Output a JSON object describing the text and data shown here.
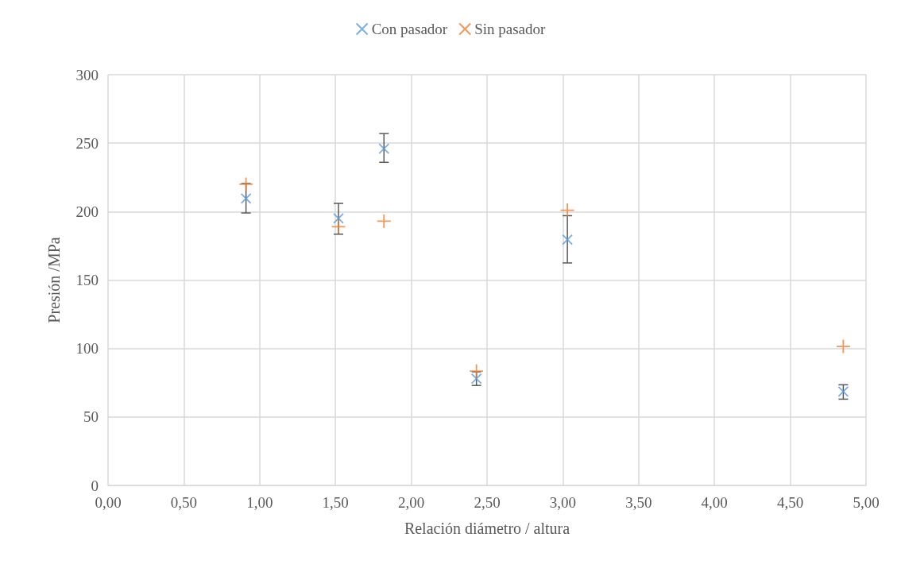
{
  "chart_data": {
    "type": "scatter",
    "xlabel": "Relación diámetro / altura",
    "ylabel": "Presión /MPa",
    "x": [
      0.91,
      1.52,
      1.82,
      2.43,
      3.03,
      4.85
    ],
    "series": [
      {
        "name": "Con pasador",
        "color": "#5b9bd5",
        "marker": "cross",
        "values": [
          209.5,
          195,
          246,
          78,
          179.5,
          68.5
        ],
        "errors": [
          [
            199,
            220.5
          ],
          [
            183.5,
            206
          ],
          [
            236,
            257
          ],
          [
            73,
            83
          ],
          [
            162.5,
            197
          ],
          [
            63,
            73.5
          ]
        ]
      },
      {
        "name": "Sin pasador",
        "color": "#ed7d31",
        "marker": "cross",
        "values": [
          220,
          189,
          193,
          83.5,
          201,
          101.5
        ]
      }
    ],
    "xlim": [
      0,
      5
    ],
    "xticks": [
      {
        "value": 0,
        "label": "0,00"
      },
      {
        "value": 0.5,
        "label": "0,50"
      },
      {
        "value": 1,
        "label": "1,00"
      },
      {
        "value": 1.5,
        "label": "1,50"
      },
      {
        "value": 2,
        "label": "2,00"
      },
      {
        "value": 2.5,
        "label": "2,50"
      },
      {
        "value": 3,
        "label": "3,00"
      },
      {
        "value": 3.5,
        "label": "3,50"
      },
      {
        "value": 4,
        "label": "4,00"
      },
      {
        "value": 4.5,
        "label": "4,50"
      },
      {
        "value": 5,
        "label": "5,00"
      }
    ],
    "ylim": [
      0,
      300
    ],
    "yticks": [
      0,
      50,
      100,
      150,
      200,
      250,
      300
    ],
    "grid": true,
    "legend": "top"
  }
}
